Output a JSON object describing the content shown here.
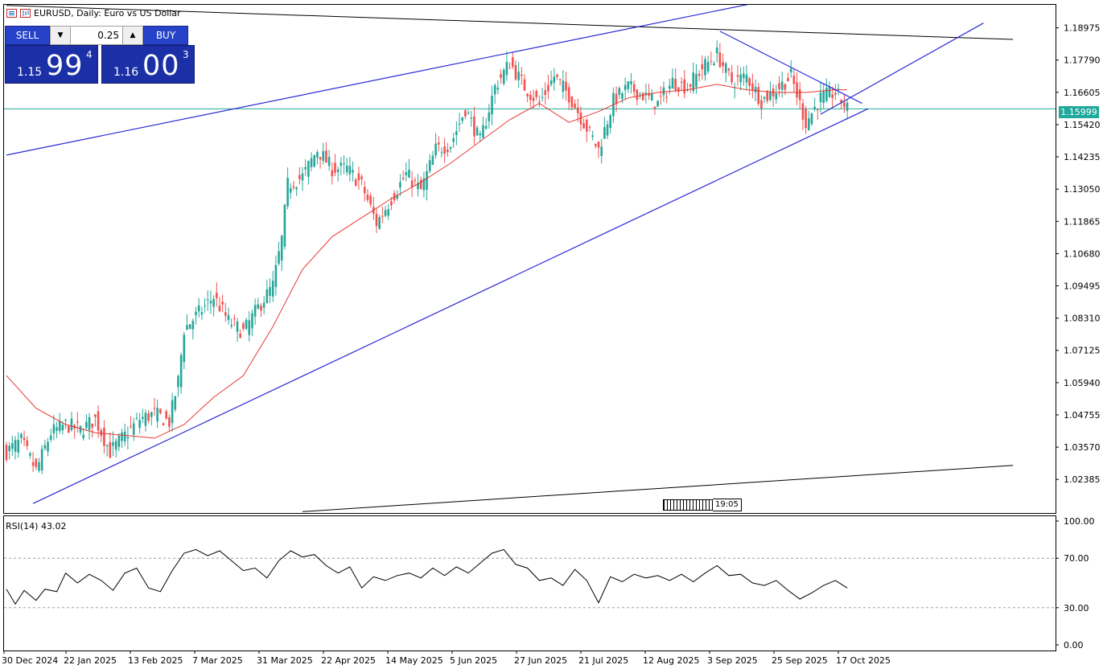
{
  "window": {
    "title": "EURUSD, Daily:  Euro vs US Dollar"
  },
  "trade_panel": {
    "sell_label": "SELL",
    "buy_label": "BUY",
    "lot_value": "0.25",
    "lot_down_icon": "triangle-down-icon",
    "lot_up_icon": "triangle-up-icon",
    "bid": {
      "small": "1.15",
      "big": "99",
      "sup": "4"
    },
    "ask": {
      "small": "1.16",
      "big": "00",
      "sup": "3"
    }
  },
  "time_badge": "19:05",
  "colors": {
    "bull": "#26a69a",
    "bear": "#ef5350",
    "ma": "#e53935",
    "trend": "#2929d6",
    "price_line": "#1fa99a"
  },
  "chart_data": [
    {
      "type": "candlestick",
      "title": "EURUSD, Daily:  Euro vs US Dollar",
      "ylim": [
        1.0115,
        1.1985
      ],
      "y_ticks": [
        "1.18975",
        "1.17790",
        "1.16605",
        "1.15420",
        "1.14235",
        "1.13050",
        "1.11865",
        "1.10680",
        "1.09495",
        "1.08310",
        "1.07125",
        "1.05940",
        "1.04755",
        "1.03570",
        "1.02385"
      ],
      "current_price": "1.15999",
      "x_ticks": [
        "30 Dec 2024",
        "22 Jan 2025",
        "13 Feb 2025",
        "7 Mar 2025",
        "31 Mar 2025",
        "22 Apr 2025",
        "14 May 2025",
        "5 Jun 2025",
        "27 Jun 2025",
        "21 Jul 2025",
        "12 Aug 2025",
        "3 Sep 2025",
        "25 Sep 2025",
        "17 Oct 2025"
      ],
      "close_path": [
        [
          0,
          1.034
        ],
        [
          5,
          1.038
        ],
        [
          10,
          1.027
        ],
        [
          15,
          1.041
        ],
        [
          20,
          1.044
        ],
        [
          25,
          1.042
        ],
        [
          30,
          1.046
        ],
        [
          35,
          1.034
        ],
        [
          40,
          1.04
        ],
        [
          45,
          1.046
        ],
        [
          50,
          1.048
        ],
        [
          55,
          1.045
        ],
        [
          58,
          1.06
        ],
        [
          60,
          1.079
        ],
        [
          65,
          1.085
        ],
        [
          70,
          1.091
        ],
        [
          75,
          1.082
        ],
        [
          80,
          1.078
        ],
        [
          85,
          1.087
        ],
        [
          90,
          1.095
        ],
        [
          93,
          1.112
        ],
        [
          95,
          1.132
        ],
        [
          100,
          1.135
        ],
        [
          105,
          1.145
        ],
        [
          110,
          1.138
        ],
        [
          115,
          1.138
        ],
        [
          120,
          1.132
        ],
        [
          125,
          1.118
        ],
        [
          130,
          1.127
        ],
        [
          135,
          1.136
        ],
        [
          140,
          1.13
        ],
        [
          145,
          1.145
        ],
        [
          150,
          1.147
        ],
        [
          155,
          1.16
        ],
        [
          160,
          1.148
        ],
        [
          165,
          1.168
        ],
        [
          170,
          1.177
        ],
        [
          175,
          1.168
        ],
        [
          180,
          1.162
        ],
        [
          185,
          1.172
        ],
        [
          190,
          1.165
        ],
        [
          195,
          1.155
        ],
        [
          200,
          1.145
        ],
        [
          205,
          1.163
        ],
        [
          210,
          1.168
        ],
        [
          215,
          1.165
        ],
        [
          220,
          1.162
        ],
        [
          225,
          1.17
        ],
        [
          230,
          1.168
        ],
        [
          235,
          1.175
        ],
        [
          240,
          1.18
        ],
        [
          245,
          1.17
        ],
        [
          250,
          1.172
        ],
        [
          255,
          1.163
        ],
        [
          260,
          1.167
        ],
        [
          265,
          1.172
        ],
        [
          270,
          1.155
        ],
        [
          275,
          1.164
        ],
        [
          280,
          1.166
        ],
        [
          284,
          1.16
        ]
      ],
      "ma_path": [
        [
          0,
          1.062
        ],
        [
          10,
          1.05
        ],
        [
          20,
          1.044
        ],
        [
          30,
          1.041
        ],
        [
          40,
          1.04
        ],
        [
          50,
          1.039
        ],
        [
          60,
          1.044
        ],
        [
          70,
          1.054
        ],
        [
          80,
          1.062
        ],
        [
          90,
          1.08
        ],
        [
          100,
          1.101
        ],
        [
          110,
          1.113
        ],
        [
          120,
          1.12
        ],
        [
          130,
          1.127
        ],
        [
          140,
          1.133
        ],
        [
          150,
          1.14
        ],
        [
          160,
          1.148
        ],
        [
          170,
          1.156
        ],
        [
          180,
          1.162
        ],
        [
          190,
          1.155
        ],
        [
          200,
          1.159
        ],
        [
          210,
          1.164
        ],
        [
          220,
          1.166
        ],
        [
          230,
          1.167
        ],
        [
          240,
          1.169
        ],
        [
          250,
          1.167
        ],
        [
          260,
          1.166
        ],
        [
          270,
          1.166
        ],
        [
          280,
          1.167
        ],
        [
          284,
          1.167
        ]
      ],
      "trendlines": [
        {
          "from": [
            0,
            1.143
          ],
          "to": [
            276,
            1.204
          ]
        },
        {
          "from": [
            9,
            1.015
          ],
          "to": [
            291,
            1.16
          ]
        },
        {
          "from": [
            241,
            1.1885
          ],
          "to": [
            289,
            1.162
          ]
        },
        {
          "from": [
            275,
            1.158
          ],
          "to": [
            330,
            1.1915
          ]
        }
      ],
      "black_lines": [
        {
          "from": [
            0,
            1.198
          ],
          "to": [
            340,
            1.1855
          ]
        },
        {
          "from": [
            100,
            1.012
          ],
          "to": [
            340,
            1.029
          ]
        }
      ]
    },
    {
      "type": "line",
      "title": "RSI(14) 43.02",
      "ylim": [
        0,
        100
      ],
      "y_ticks": [
        "100.00",
        "70.00",
        "30.00",
        "0.00"
      ],
      "levels": [
        70,
        30
      ],
      "path": [
        [
          0,
          45
        ],
        [
          3,
          33
        ],
        [
          6,
          44
        ],
        [
          10,
          36
        ],
        [
          13,
          45
        ],
        [
          17,
          43
        ],
        [
          20,
          58
        ],
        [
          24,
          50
        ],
        [
          28,
          57
        ],
        [
          32,
          52
        ],
        [
          36,
          44
        ],
        [
          40,
          58
        ],
        [
          44,
          62
        ],
        [
          48,
          46
        ],
        [
          52,
          43
        ],
        [
          56,
          60
        ],
        [
          60,
          74
        ],
        [
          64,
          77
        ],
        [
          68,
          72
        ],
        [
          72,
          76
        ],
        [
          76,
          68
        ],
        [
          80,
          60
        ],
        [
          84,
          62
        ],
        [
          88,
          54
        ],
        [
          92,
          68
        ],
        [
          96,
          76
        ],
        [
          100,
          71
        ],
        [
          104,
          73
        ],
        [
          108,
          64
        ],
        [
          112,
          58
        ],
        [
          116,
          63
        ],
        [
          120,
          46
        ],
        [
          124,
          55
        ],
        [
          128,
          52
        ],
        [
          132,
          56
        ],
        [
          136,
          58
        ],
        [
          140,
          54
        ],
        [
          144,
          62
        ],
        [
          148,
          56
        ],
        [
          152,
          63
        ],
        [
          156,
          58
        ],
        [
          160,
          66
        ],
        [
          164,
          74
        ],
        [
          168,
          77
        ],
        [
          172,
          65
        ],
        [
          176,
          62
        ],
        [
          180,
          52
        ],
        [
          184,
          54
        ],
        [
          188,
          48
        ],
        [
          192,
          61
        ],
        [
          196,
          52
        ],
        [
          200,
          34
        ],
        [
          204,
          55
        ],
        [
          208,
          51
        ],
        [
          212,
          57
        ],
        [
          216,
          54
        ],
        [
          220,
          56
        ],
        [
          224,
          52
        ],
        [
          228,
          57
        ],
        [
          232,
          51
        ],
        [
          236,
          58
        ],
        [
          240,
          64
        ],
        [
          244,
          56
        ],
        [
          248,
          57
        ],
        [
          252,
          50
        ],
        [
          256,
          48
        ],
        [
          260,
          52
        ],
        [
          264,
          44
        ],
        [
          268,
          37
        ],
        [
          272,
          42
        ],
        [
          276,
          48
        ],
        [
          280,
          52
        ],
        [
          284,
          46
        ]
      ]
    }
  ]
}
